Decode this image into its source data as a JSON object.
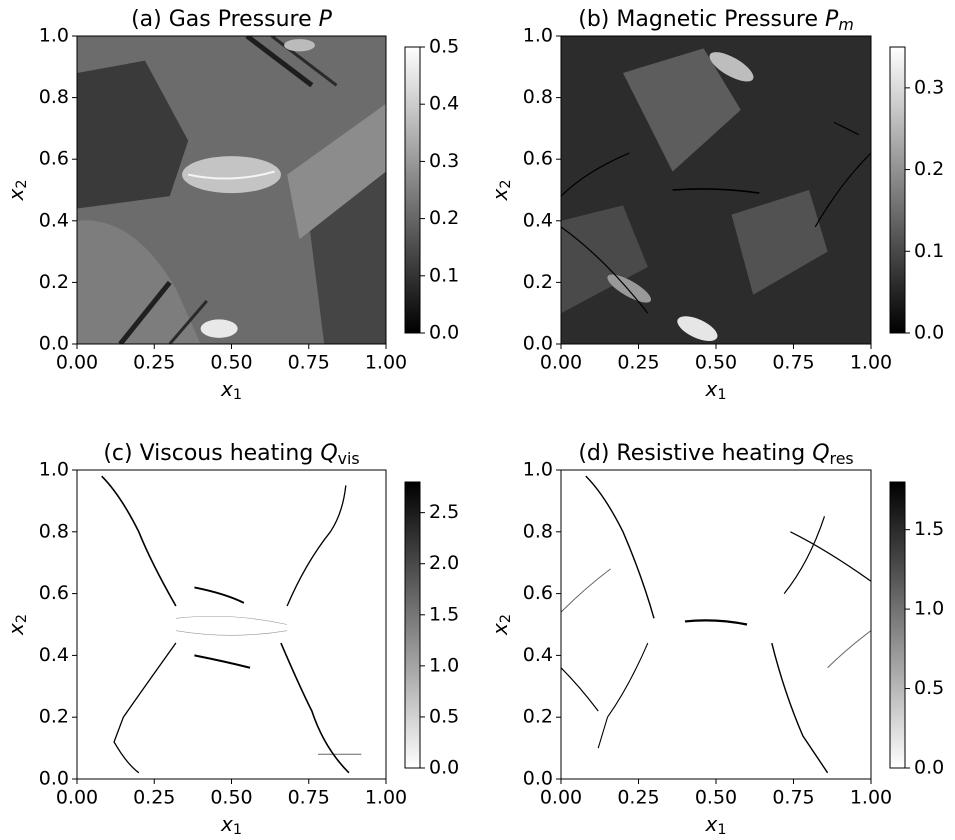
{
  "chart_data": [
    {
      "type": "heatmap",
      "title": "(a) Gas Pressure",
      "title_symbol": "P",
      "xlabel": "x",
      "xlabel_sub": "1",
      "ylabel": "x",
      "ylabel_sub": "2",
      "xlim": [
        0,
        1
      ],
      "xticks": [
        {
          "value": 0,
          "label": "0.00"
        },
        {
          "value": 0.25,
          "label": "0.25"
        },
        {
          "value": 0.5,
          "label": "0.50"
        },
        {
          "value": 0.75,
          "label": "0.75"
        },
        {
          "value": 1,
          "label": "1.00"
        }
      ],
      "ylim": [
        0,
        1
      ],
      "yticks": [
        {
          "value": 0,
          "label": "0.0"
        },
        0.2,
        0.4,
        0.6,
        0.8,
        {
          "value": 1,
          "label": "1.0"
        }
      ],
      "colorbar": {
        "lim": [
          0,
          0.5
        ],
        "ticks": [
          {
            "value": 0,
            "label": "0.0"
          },
          0.1,
          0.2,
          0.3,
          0.4,
          0.5
        ],
        "colormap": "gray"
      }
    },
    {
      "type": "heatmap",
      "title": "(b) Magnetic Pressure",
      "title_symbol": "P",
      "title_sub": "m",
      "xlabel": "x",
      "xlabel_sub": "1",
      "ylabel": "x",
      "ylabel_sub": "2",
      "xlim": [
        0,
        1
      ],
      "xticks": [
        {
          "value": 0,
          "label": "0.00"
        },
        {
          "value": 0.25,
          "label": "0.25"
        },
        {
          "value": 0.5,
          "label": "0.50"
        },
        {
          "value": 0.75,
          "label": "0.75"
        },
        {
          "value": 1,
          "label": "1.00"
        }
      ],
      "ylim": [
        0,
        1
      ],
      "yticks": [
        {
          "value": 0,
          "label": "0.0"
        },
        0.2,
        0.4,
        0.6,
        0.8,
        {
          "value": 1,
          "label": "1.0"
        }
      ],
      "colorbar": {
        "lim": [
          0,
          0.35
        ],
        "ticks": [
          {
            "value": 0,
            "label": "0.0"
          },
          0.1,
          0.2,
          0.3
        ],
        "colormap": "gray"
      }
    },
    {
      "type": "heatmap",
      "title": "(c) Viscous heating",
      "title_symbol": "Q",
      "title_sub": "vis",
      "xlabel": "x",
      "xlabel_sub": "1",
      "ylabel": "x",
      "ylabel_sub": "2",
      "xlim": [
        0,
        1
      ],
      "xticks": [
        {
          "value": 0,
          "label": "0.00"
        },
        {
          "value": 0.25,
          "label": "0.25"
        },
        {
          "value": 0.5,
          "label": "0.50"
        },
        {
          "value": 0.75,
          "label": "0.75"
        },
        {
          "value": 1,
          "label": "1.00"
        }
      ],
      "ylim": [
        0,
        1
      ],
      "yticks": [
        {
          "value": 0,
          "label": "0.0"
        },
        0.2,
        0.4,
        0.6,
        0.8,
        {
          "value": 1,
          "label": "1.0"
        }
      ],
      "colorbar": {
        "lim": [
          0,
          2.8
        ],
        "ticks": [
          {
            "value": 0,
            "label": "0.0"
          },
          0.5,
          {
            "value": 1,
            "label": "1.0"
          },
          1.5,
          {
            "value": 2,
            "label": "2.0"
          },
          2.5
        ],
        "colormap": "gray_r"
      }
    },
    {
      "type": "heatmap",
      "title": "(d) Resistive heating",
      "title_symbol": "Q",
      "title_sub": "res",
      "xlabel": "x",
      "xlabel_sub": "1",
      "ylabel": "x",
      "ylabel_sub": "2",
      "xlim": [
        0,
        1
      ],
      "xticks": [
        {
          "value": 0,
          "label": "0.00"
        },
        {
          "value": 0.25,
          "label": "0.25"
        },
        {
          "value": 0.5,
          "label": "0.50"
        },
        {
          "value": 0.75,
          "label": "0.75"
        },
        {
          "value": 1,
          "label": "1.00"
        }
      ],
      "ylim": [
        0,
        1
      ],
      "yticks": [
        {
          "value": 0,
          "label": "0.0"
        },
        0.2,
        0.4,
        0.6,
        0.8,
        {
          "value": 1,
          "label": "1.0"
        }
      ],
      "colorbar": {
        "lim": [
          0,
          1.8
        ],
        "ticks": [
          {
            "value": 0,
            "label": "0.0"
          },
          0.5,
          {
            "value": 1,
            "label": "1.0"
          },
          1.5
        ],
        "colormap": "gray_r"
      }
    }
  ]
}
